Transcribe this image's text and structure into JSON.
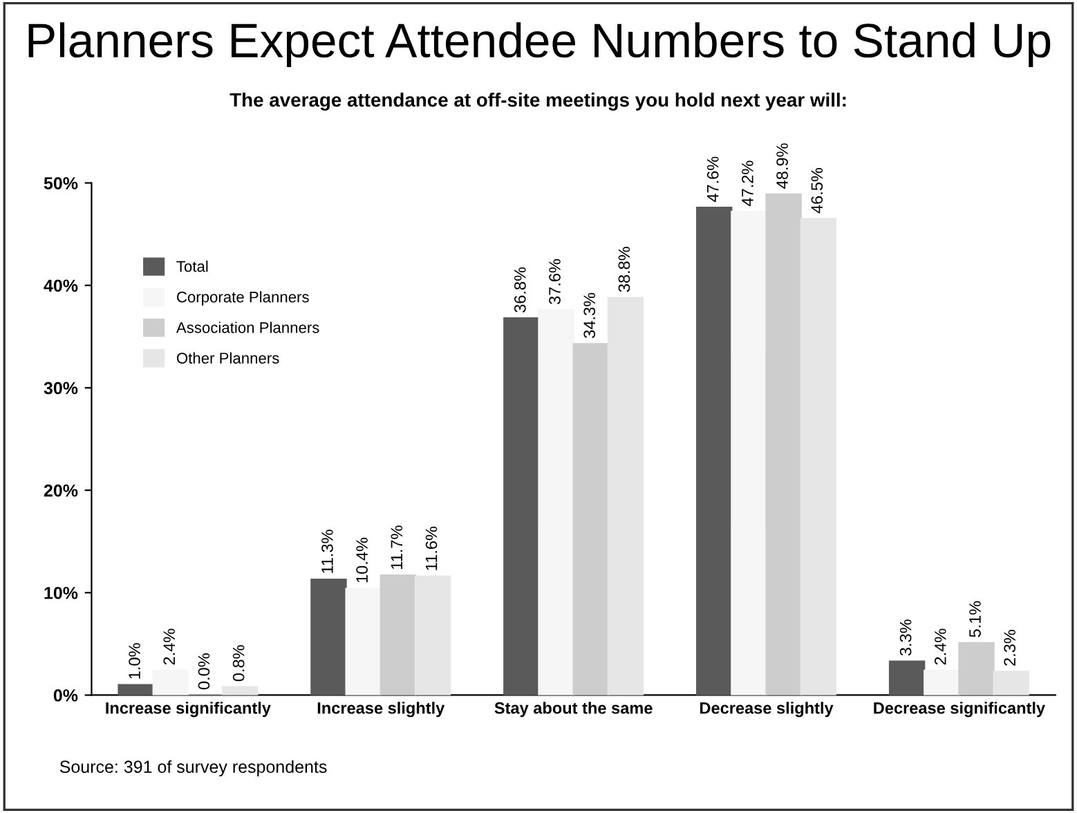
{
  "chart_data": {
    "type": "bar",
    "title": "Planners Expect Attendee Numbers to Stand Up",
    "subtitle": "The average attendance at off-site meetings you hold next year will:",
    "categories": [
      "Increase significantly",
      "Increase slightly",
      "Stay about the same",
      "Decrease slightly",
      "Decrease significantly"
    ],
    "series": [
      {
        "name": "Total",
        "color": "#5a5a5a",
        "values": [
          1.0,
          11.3,
          36.8,
          47.6,
          3.3
        ],
        "value_labels": [
          "1.0%",
          "11.3%",
          "36.8%",
          "47.6%",
          "3.3%"
        ]
      },
      {
        "name": "Corporate Planners",
        "color": "#f6f6f6",
        "values": [
          2.4,
          10.4,
          37.6,
          47.2,
          2.4
        ],
        "value_labels": [
          "2.4%",
          "10.4%",
          "37.6%",
          "47.2%",
          "2.4%"
        ]
      },
      {
        "name": "Association Planners",
        "color": "#cdcdcd",
        "values": [
          0.0,
          11.7,
          34.3,
          48.9,
          5.1
        ],
        "value_labels": [
          "0.0%",
          "11.7%",
          "34.3%",
          "48.9%",
          "5.1%"
        ]
      },
      {
        "name": "Other Planners",
        "color": "#e6e6e6",
        "values": [
          0.8,
          11.6,
          38.8,
          46.5,
          2.3
        ],
        "value_labels": [
          "0.8%",
          "11.6%",
          "38.8%",
          "46.5%",
          "2.3%"
        ]
      }
    ],
    "ylim": [
      0,
      50
    ],
    "yticks": [
      {
        "value": 0,
        "label": "0%"
      },
      {
        "value": 10,
        "label": "10%"
      },
      {
        "value": 20,
        "label": "20%"
      },
      {
        "value": 30,
        "label": "30%"
      },
      {
        "value": 40,
        "label": "40%"
      },
      {
        "value": 50,
        "label": "50%"
      }
    ],
    "grid": false,
    "legend": "top left",
    "annotations": [
      "Source: 391 of survey respondents"
    ]
  }
}
